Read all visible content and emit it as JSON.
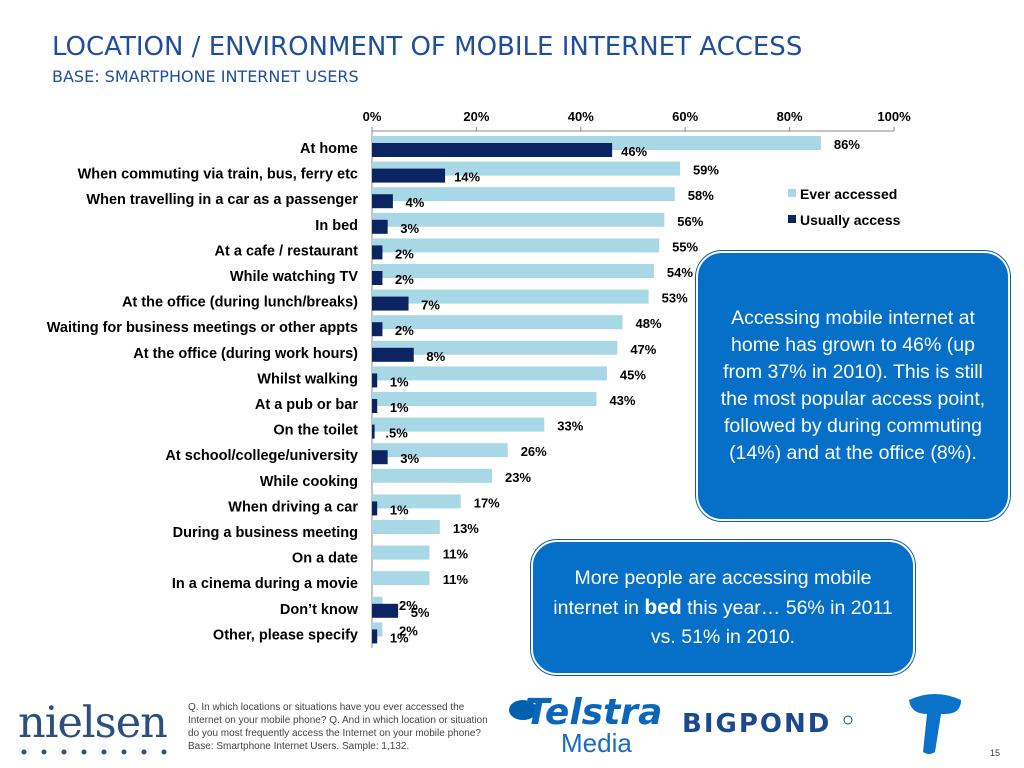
{
  "title": "LOCATION / ENVIRONMENT OF MOBILE INTERNET ACCESS",
  "subtitle": "BASE: SMARTPHONE INTERNET USERS",
  "colors": {
    "ever": "#a8d8e6",
    "usually": "#0c2461",
    "title": "#1f4e9a",
    "callout": "#0670c9"
  },
  "chart_data": {
    "type": "bar",
    "orientation": "horizontal",
    "title": "",
    "xlabel": "",
    "ylabel": "",
    "xlim": [
      0,
      100
    ],
    "x_ticks": [
      "0%",
      "20%",
      "40%",
      "60%",
      "80%",
      "100%"
    ],
    "x_tick_values": [
      0,
      20,
      40,
      60,
      80,
      100
    ],
    "legend_position": "right",
    "categories": [
      "At home",
      "When commuting via train, bus, ferry etc",
      "When travelling in a car as a passenger",
      "In bed",
      "At a cafe / restaurant",
      "While watching TV",
      "At the office (during lunch/breaks)",
      "Waiting for business meetings or other appts",
      "At the office (during work hours)",
      "Whilst walking",
      "At a pub or bar",
      "On the toilet",
      "At school/college/university",
      "While cooking",
      "When driving a car",
      "During a business meeting",
      "On a date",
      "In a cinema during a movie",
      "Don’t know",
      "Other, please specify"
    ],
    "series": [
      {
        "name": "Ever accessed",
        "values": [
          86,
          59,
          58,
          56,
          55,
          54,
          53,
          48,
          47,
          45,
          43,
          33,
          26,
          23,
          17,
          13,
          11,
          11,
          2,
          2
        ],
        "labels": [
          "86%",
          "59%",
          "58%",
          "56%",
          "55%",
          "54%",
          "53%",
          "48%",
          "47%",
          "45%",
          "43%",
          "33%",
          "26%",
          "23%",
          "17%",
          "13%",
          "11%",
          "11%",
          "2%",
          "2%"
        ]
      },
      {
        "name": "Usually access",
        "values": [
          46,
          14,
          4,
          3,
          2,
          2,
          7,
          2,
          8,
          1,
          1,
          0.5,
          3,
          null,
          1,
          null,
          null,
          null,
          5,
          1
        ],
        "labels": [
          "46%",
          "14%",
          "4%",
          "3%",
          "2%",
          "2%",
          "7%",
          "2%",
          "8%",
          "1%",
          "1%",
          ".5%",
          "3%",
          "",
          "1%",
          "",
          "",
          "",
          "5%",
          "1%"
        ]
      }
    ]
  },
  "callout1": "Accessing mobile internet at home has grown to 46% (up from 37% in 2010). This is still the most popular access point,  followed by during commuting (14%) and at the office (8%).",
  "callout2": {
    "part1": "More people are accessing mobile internet in ",
    "bold": "bed",
    "part2": " this year… 56% in 2011 vs. 51% in 2010."
  },
  "footnote": "Q. In which locations or situations have you ever accessed the Internet on your mobile phone? Q. And in which location or situation do you most frequently access the Internet on your mobile phone? Base: Smartphone Internet Users. Sample: 1,132.",
  "logos": {
    "nielsen": "nielsen",
    "telstra": "Telstra",
    "media": "Media",
    "bigpond": "BIGPOND"
  },
  "page_number": "15"
}
